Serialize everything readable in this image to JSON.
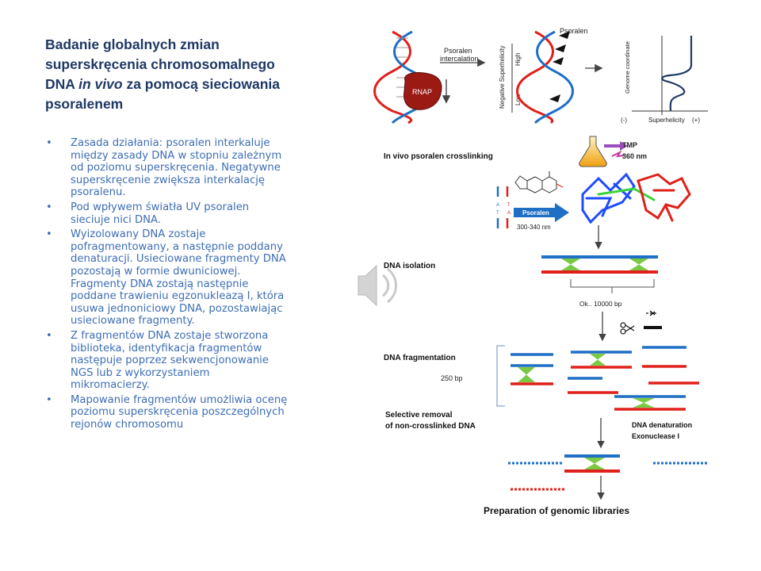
{
  "slide": {
    "title_part1": "Badanie globalnych zmian superskręcenia chromosomalnego DNA ",
    "title_italic": "in vivo",
    "title_part2": " za pomocą sieciowania psoralenem",
    "bullets": [
      "Zasada działania: psoralen interkaluje między zasady DNA w stopniu zależnym od poziomu superskręcenia. Negatywne superskręcenie zwiększa interkalację psoralenu.",
      "Pod wpływem światła UV psoralen sieciuje nici DNA.",
      "Wyizolowany DNA zostaje pofragmentowany, a następnie poddany denaturacji. Usieciowane fragmenty DNA pozostają w formie dwuniciowej. Fragmenty DNA zostają następnie poddane trawieniu egzonukleazą I, która usuwa jednoniciowy DNA, pozostawiając usieciowane fragmenty.",
      "Z fragmentów DNA zostaje stworzona biblioteka, identyfikacja fragmentów następuje poprzez sekwencjonowanie NGS lub z wykorzystaniem mikromacierzy.",
      "Mapowanie fragmentów umożliwia ocenę poziomu superskręcenia poszczególnych rejonów chromosomu"
    ]
  },
  "diagram": {
    "psoralen_intercalation": "Psoralen\nintercalation",
    "rnap": "RNAP",
    "psoralen_top": "Psoralen",
    "negative_supercoiling": "Negative Superhelicity",
    "high": "High",
    "low": "Low",
    "genome_coordinate": "Genome coordinate",
    "superhelicity_axis": "Superhelicity",
    "minus": "(-)",
    "plus": "(+)",
    "in_vivo": "In vivo psoralen crosslinking",
    "tmp": "TMP",
    "nm360": "360 nm",
    "psoralen_arrow": "Psoralen",
    "nm300": "300-340 nm",
    "dna_isolation": "DNA isolation",
    "bp10000": "Ok.. 10000 bp",
    "dna_fragmentation": "DNA fragmentation",
    "bp250": "250 bp",
    "selective_removal_1": "Selective removal",
    "selective_removal_2": "of non-crosslinked DNA",
    "denaturation_1": "DNA denaturation",
    "denaturation_2": "Exonuclease I",
    "libraries": "Preparation of genomic libraries"
  },
  "colors": {
    "title": "#1f3864",
    "bullet_text": "#3d6eb4",
    "strand_blue": "#1f6fc5",
    "strand_red": "#e0201a",
    "crosslink_green": "#7ac943"
  },
  "icons": [
    "speaker-icon",
    "scissors-icon",
    "flask-icon"
  ]
}
